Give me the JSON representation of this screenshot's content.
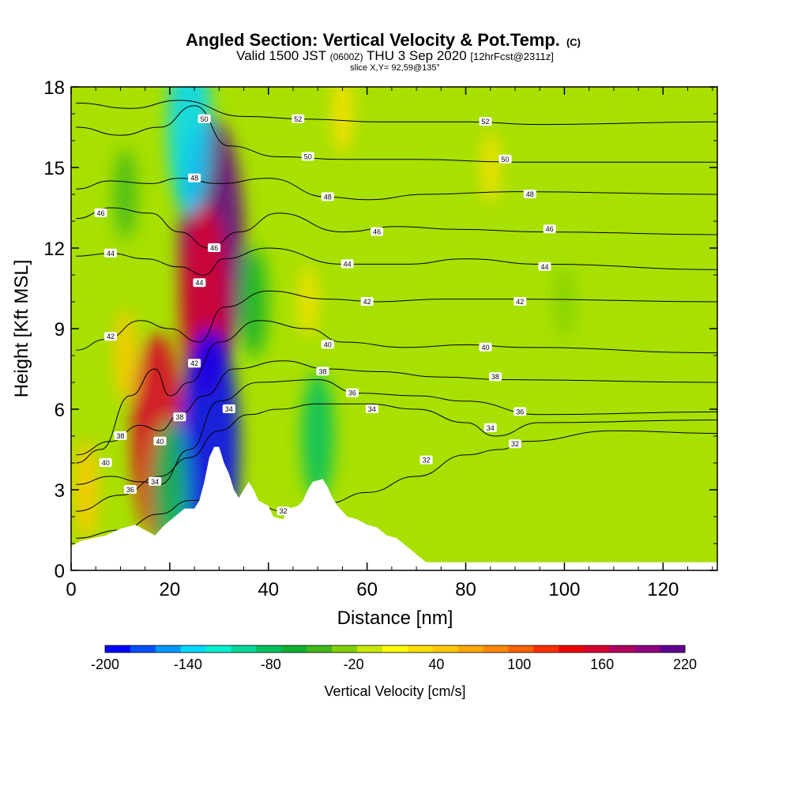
{
  "chart_data": {
    "type": "heatmap",
    "title": "Angled Section: Vertical Velocity & Pot.Temp.",
    "title_unit": "(C)",
    "subtitle": {
      "valid": "Valid 1500 JST",
      "utc": "(0600Z)",
      "date": "THU 3 Sep 2020",
      "forecast": "[12hrFcst@2311z]"
    },
    "slice": "slice X,Y= 92,59@135°",
    "xlabel": "Distance [nm]",
    "ylabel": "Height [Kft MSL]",
    "xlim": [
      0,
      131
    ],
    "ylim": [
      0,
      18
    ],
    "x_ticks": [
      "0",
      "20",
      "40",
      "60",
      "80",
      "100",
      "120"
    ],
    "y_ticks": [
      "0",
      "3",
      "6",
      "9",
      "12",
      "15",
      "18"
    ],
    "colorbar": {
      "label": "Vertical Velocity [cm/s]",
      "tick_labels": [
        "-200",
        "-140",
        "-80",
        "-20",
        "40",
        "100",
        "160",
        "220"
      ],
      "colors": [
        "#0000ff",
        "#0050ff",
        "#0098ff",
        "#00d8ff",
        "#00f0d0",
        "#00d898",
        "#00c060",
        "#10b030",
        "#40b818",
        "#80d000",
        "#c8e800",
        "#ffff00",
        "#ffe000",
        "#ffc800",
        "#ffa800",
        "#ff8800",
        "#ff6000",
        "#ff3000",
        "#f00000",
        "#d80030",
        "#b00060",
        "#900080",
        "#600090"
      ]
    },
    "terrain_kft": [
      [
        0,
        0.9
      ],
      [
        2,
        1.1
      ],
      [
        7,
        1.3
      ],
      [
        10,
        1.55
      ],
      [
        13,
        1.7
      ],
      [
        15,
        1.5
      ],
      [
        17,
        1.3
      ],
      [
        19,
        1.7
      ],
      [
        21,
        2.0
      ],
      [
        23,
        2.3
      ],
      [
        25,
        2.3
      ],
      [
        26,
        2.6
      ],
      [
        27,
        3.3
      ],
      [
        28,
        4.2
      ],
      [
        29,
        4.6
      ],
      [
        30,
        4.6
      ],
      [
        31,
        4.0
      ],
      [
        32,
        3.6
      ],
      [
        33,
        3.0
      ],
      [
        34,
        2.7
      ],
      [
        35,
        3.0
      ],
      [
        36,
        3.3
      ],
      [
        37,
        3.0
      ],
      [
        38,
        2.6
      ],
      [
        40,
        2.4
      ],
      [
        41,
        2.0
      ],
      [
        43,
        1.9
      ],
      [
        44,
        2.3
      ],
      [
        46,
        2.4
      ],
      [
        47,
        2.6
      ],
      [
        48,
        3.0
      ],
      [
        49,
        3.3
      ],
      [
        51,
        3.4
      ],
      [
        52,
        3.1
      ],
      [
        53,
        2.7
      ],
      [
        54,
        2.4
      ],
      [
        56,
        2.0
      ],
      [
        58,
        1.9
      ],
      [
        60,
        1.7
      ],
      [
        62,
        1.6
      ],
      [
        64,
        1.3
      ],
      [
        66,
        1.2
      ],
      [
        68,
        0.9
      ],
      [
        70,
        0.6
      ],
      [
        72,
        0.3
      ],
      [
        131,
        0.3
      ]
    ],
    "updrafts": [
      {
        "x": 3,
        "y": 3,
        "value": 50
      },
      {
        "x": 17.5,
        "y": 5,
        "value": 160
      },
      {
        "x": 28.5,
        "y": 12,
        "value": 220
      },
      {
        "x": 27,
        "y": 10,
        "value": 150
      },
      {
        "x": 11,
        "y": 8,
        "value": 40
      },
      {
        "x": 48,
        "y": 10,
        "value": 20
      },
      {
        "x": 55,
        "y": 17,
        "value": 30
      },
      {
        "x": 85,
        "y": 15,
        "value": 20
      }
    ],
    "downdrafts": [
      {
        "x": 28,
        "y": 4.5,
        "value": -200
      },
      {
        "x": 24,
        "y": 16.5,
        "value": -130
      },
      {
        "x": 20,
        "y": 3,
        "value": -90
      },
      {
        "x": 50,
        "y": 5,
        "value": -80
      },
      {
        "x": 37,
        "y": 10,
        "value": -60
      },
      {
        "x": 11,
        "y": 14,
        "value": -40
      },
      {
        "x": 100,
        "y": 10,
        "value": -20
      }
    ],
    "isentropes": [
      {
        "theta": 32,
        "points": [
          [
            1,
            1.2
          ],
          [
            10,
            1.5
          ],
          [
            18,
            2.1
          ],
          [
            24,
            2.6
          ],
          [
            35,
            2.7
          ],
          [
            43,
            2.2
          ],
          [
            52,
            2.5
          ],
          [
            60,
            2.9
          ],
          [
            70,
            3.5
          ],
          [
            80,
            4.3
          ],
          [
            87,
            4.5
          ],
          [
            92,
            4.8
          ],
          [
            110,
            5.2
          ],
          [
            131,
            5.1
          ]
        ],
        "labels": [
          [
            43,
            2.2
          ],
          [
            72,
            4.1
          ],
          [
            90,
            4.7
          ]
        ]
      },
      {
        "theta": 34,
        "points": [
          [
            1,
            2.2
          ],
          [
            10,
            2.8
          ],
          [
            18,
            3.5
          ],
          [
            24,
            4.2
          ],
          [
            30,
            5.2
          ],
          [
            36,
            5.8
          ],
          [
            42,
            6.0
          ],
          [
            50,
            6.2
          ],
          [
            60,
            6.2
          ],
          [
            70,
            6.0
          ],
          [
            80,
            5.5
          ],
          [
            86,
            5.0
          ],
          [
            95,
            5.5
          ],
          [
            131,
            5.6
          ]
        ],
        "labels": [
          [
            17,
            3.3
          ],
          [
            32,
            6.0
          ],
          [
            61,
            6.0
          ],
          [
            85,
            5.3
          ]
        ]
      },
      {
        "theta": 36,
        "points": [
          [
            1,
            3.2
          ],
          [
            8,
            3.5
          ],
          [
            14,
            3.3
          ],
          [
            18,
            3.2
          ],
          [
            24,
            4.5
          ],
          [
            30,
            6.3
          ],
          [
            38,
            7.0
          ],
          [
            50,
            7.1
          ],
          [
            58,
            6.6
          ],
          [
            70,
            6.5
          ],
          [
            80,
            6.3
          ],
          [
            95,
            5.8
          ],
          [
            131,
            5.9
          ]
        ],
        "labels": [
          [
            12,
            3.0
          ],
          [
            57,
            6.6
          ],
          [
            91,
            5.9
          ]
        ]
      },
      {
        "theta": 38,
        "points": [
          [
            1,
            4.3
          ],
          [
            8,
            4.8
          ],
          [
            14,
            5.4
          ],
          [
            18,
            5.2
          ],
          [
            22,
            5.8
          ],
          [
            27,
            6.5
          ],
          [
            33,
            7.5
          ],
          [
            43,
            7.8
          ],
          [
            52,
            7.5
          ],
          [
            62,
            7.4
          ],
          [
            75,
            7.2
          ],
          [
            88,
            7.1
          ],
          [
            131,
            7.0
          ]
        ],
        "labels": [
          [
            10,
            5.0
          ],
          [
            22,
            5.7
          ],
          [
            51,
            7.4
          ],
          [
            86,
            7.2
          ]
        ]
      },
      {
        "theta": 40,
        "points": [
          [
            1,
            4.0
          ],
          [
            6,
            4.5
          ],
          [
            12,
            6.5
          ],
          [
            17,
            7.5
          ],
          [
            20,
            6.5
          ],
          [
            24,
            7.0
          ],
          [
            30,
            8.5
          ],
          [
            38,
            9.3
          ],
          [
            48,
            9.0
          ],
          [
            55,
            8.5
          ],
          [
            68,
            8.3
          ],
          [
            80,
            8.4
          ],
          [
            92,
            8.3
          ],
          [
            131,
            8.1
          ]
        ],
        "labels": [
          [
            7,
            4.0
          ],
          [
            18,
            4.8
          ],
          [
            52,
            8.4
          ],
          [
            84,
            8.3
          ]
        ]
      },
      {
        "theta": 42,
        "points": [
          [
            1,
            8.2
          ],
          [
            7,
            8.6
          ],
          [
            14,
            9.3
          ],
          [
            20,
            9.0
          ],
          [
            26,
            8.5
          ],
          [
            31,
            9.8
          ],
          [
            40,
            10.4
          ],
          [
            52,
            10.1
          ],
          [
            62,
            10.0
          ],
          [
            75,
            10.1
          ],
          [
            90,
            10.1
          ],
          [
            131,
            10.0
          ]
        ],
        "labels": [
          [
            8,
            8.7
          ],
          [
            25,
            7.7
          ],
          [
            60,
            10.0
          ],
          [
            91,
            10.0
          ]
        ]
      },
      {
        "theta": 44,
        "points": [
          [
            1,
            11.7
          ],
          [
            8,
            11.8
          ],
          [
            15,
            11.6
          ],
          [
            22,
            11.3
          ],
          [
            27,
            11.0
          ],
          [
            31,
            11.6
          ],
          [
            40,
            12.0
          ],
          [
            55,
            11.4
          ],
          [
            68,
            11.4
          ],
          [
            80,
            11.6
          ],
          [
            95,
            11.4
          ],
          [
            131,
            11.2
          ]
        ],
        "labels": [
          [
            8,
            11.8
          ],
          [
            26,
            10.7
          ],
          [
            56,
            11.4
          ],
          [
            96,
            11.3
          ]
        ]
      },
      {
        "theta": 46,
        "points": [
          [
            1,
            13.1
          ],
          [
            8,
            13.5
          ],
          [
            16,
            13.3
          ],
          [
            22,
            12.6
          ],
          [
            28,
            12.0
          ],
          [
            34,
            12.6
          ],
          [
            42,
            13.3
          ],
          [
            55,
            12.6
          ],
          [
            66,
            12.8
          ],
          [
            78,
            12.7
          ],
          [
            96,
            12.6
          ],
          [
            131,
            12.5
          ]
        ],
        "labels": [
          [
            6,
            13.3
          ],
          [
            29,
            12.0
          ],
          [
            62,
            12.6
          ],
          [
            97,
            12.7
          ]
        ]
      },
      {
        "theta": 48,
        "points": [
          [
            1,
            14.2
          ],
          [
            8,
            14.5
          ],
          [
            16,
            14.4
          ],
          [
            22,
            14.6
          ],
          [
            30,
            14.4
          ],
          [
            40,
            14.6
          ],
          [
            52,
            13.9
          ],
          [
            60,
            13.8
          ],
          [
            72,
            14.0
          ],
          [
            90,
            14.1
          ],
          [
            131,
            14.0
          ]
        ],
        "labels": [
          [
            25,
            14.6
          ],
          [
            52,
            13.9
          ],
          [
            93,
            14.0
          ]
        ]
      },
      {
        "theta": 50,
        "points": [
          [
            1,
            16.5
          ],
          [
            10,
            16.2
          ],
          [
            18,
            16.5
          ],
          [
            25,
            17.3
          ],
          [
            32,
            15.8
          ],
          [
            42,
            15.4
          ],
          [
            55,
            15.3
          ],
          [
            70,
            15.3
          ],
          [
            90,
            15.2
          ],
          [
            131,
            15.2
          ]
        ],
        "labels": [
          [
            27,
            16.8
          ],
          [
            48,
            15.4
          ],
          [
            88,
            15.3
          ]
        ]
      },
      {
        "theta": 52,
        "points": [
          [
            1,
            17.4
          ],
          [
            12,
            17.2
          ],
          [
            22,
            17.5
          ],
          [
            35,
            16.9
          ],
          [
            48,
            16.8
          ],
          [
            62,
            16.7
          ],
          [
            80,
            16.7
          ],
          [
            95,
            16.6
          ],
          [
            131,
            16.7
          ]
        ],
        "labels": [
          [
            46,
            16.8
          ],
          [
            84,
            16.7
          ]
        ]
      }
    ]
  }
}
